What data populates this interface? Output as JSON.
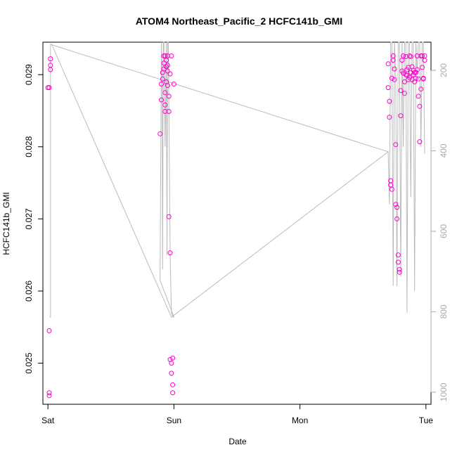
{
  "chart_data": {
    "type": "scatter",
    "title": "ATOM4 Northeast_Pacific_2 HCFC141b_GMI",
    "xlabel": "Date",
    "ylabel": "HCFC141b_GMI",
    "x_ticks": [
      {
        "label": "Sat",
        "value": 0
      },
      {
        "label": "Sun",
        "value": 1
      },
      {
        "label": "Mon",
        "value": 2
      },
      {
        "label": "Tue",
        "value": 3
      }
    ],
    "xlim": [
      -0.04,
      3.04
    ],
    "ylim": [
      0.02443,
      0.02945
    ],
    "y_ticks": [
      0.025,
      0.026,
      0.027,
      0.028,
      0.029
    ],
    "y_right_label": "",
    "y_right_ticks": [
      200,
      400,
      600,
      800,
      1000
    ],
    "y_right_lim": [
      1030,
      130
    ],
    "grid": false,
    "colors": {
      "points": "#ff00cc",
      "line": "#bbbbbb",
      "right_axis": "#aaaaaa"
    },
    "series": [
      {
        "kind": "points",
        "x": [
          0.01,
          0.01,
          0.01,
          0.01,
          0.02,
          0.02,
          0.02,
          0.0,
          0.89,
          0.9,
          0.9,
          0.91,
          0.91,
          0.92,
          0.92,
          0.92,
          0.93,
          0.93,
          0.93,
          0.94,
          0.94,
          0.94,
          0.95,
          0.95,
          0.95,
          0.96,
          0.96,
          0.96,
          0.97,
          0.97,
          0.98,
          0.98,
          0.99,
          0.99,
          0.99,
          1.0,
          0.93,
          0.95,
          0.97,
          0.98,
          2.7,
          2.7,
          2.71,
          2.71,
          2.72,
          2.72,
          2.73,
          2.73,
          2.74,
          2.74,
          2.75,
          2.75,
          2.76,
          2.76,
          2.77,
          2.77,
          2.78,
          2.78,
          2.79,
          2.79,
          2.8,
          2.8,
          2.81,
          2.81,
          2.82,
          2.82,
          2.83,
          2.83,
          2.84,
          2.84,
          2.85,
          2.85,
          2.86,
          2.86,
          2.87,
          2.87,
          2.88,
          2.88,
          2.89,
          2.89,
          2.9,
          2.9,
          2.91,
          2.91,
          2.92,
          2.92,
          2.93,
          2.93,
          2.94,
          2.94,
          2.95,
          2.95,
          2.96,
          2.96,
          2.97,
          2.97,
          2.98,
          2.98,
          2.99,
          2.99
        ],
        "y": [
          0.02545,
          0.02455,
          0.02459,
          0.02882,
          0.02907,
          0.02913,
          0.02922,
          0.02882,
          0.02818,
          0.02865,
          0.02887,
          0.02894,
          0.02903,
          0.02916,
          0.02926,
          0.02908,
          0.02875,
          0.02858,
          0.02849,
          0.0289,
          0.02911,
          0.0292,
          0.02926,
          0.02905,
          0.02885,
          0.0287,
          0.02849,
          0.02703,
          0.02653,
          0.02505,
          0.025,
          0.02486,
          0.02507,
          0.0247,
          0.02459,
          0.02887,
          0.02926,
          0.02913,
          0.02901,
          0.02926,
          0.02915,
          0.02882,
          0.02863,
          0.02841,
          0.02753,
          0.02747,
          0.02741,
          0.02895,
          0.0292,
          0.02926,
          0.02908,
          0.02893,
          0.02803,
          0.0272,
          0.02716,
          0.027,
          0.0265,
          0.0264,
          0.0263,
          0.02626,
          0.02843,
          0.02878,
          0.02905,
          0.0292,
          0.02926,
          0.02902,
          0.0289,
          0.02874,
          0.02925,
          0.029,
          0.02907,
          0.02899,
          0.02893,
          0.0291,
          0.02926,
          0.02896,
          0.02903,
          0.02925,
          0.02911,
          0.02893,
          0.029,
          0.02906,
          0.02903,
          0.0289,
          0.02903,
          0.02895,
          0.02926,
          0.02907,
          0.02894,
          0.0287,
          0.02856,
          0.02807,
          0.0288,
          0.02926,
          0.02926,
          0.0291,
          0.02895,
          0.02894,
          0.0292,
          0.02926
        ]
      },
      {
        "kind": "line",
        "x": [
          0.01,
          0.02,
          0.02,
          0.03,
          0.98,
          0.99,
          1.0,
          0.89,
          0.9,
          0.905,
          0.91,
          0.915,
          0.92,
          0.93,
          0.94,
          0.945,
          0.95,
          0.955,
          0.96,
          0.97,
          0.98,
          0.99,
          2.7,
          0.02,
          2.7,
          2.71,
          2.72,
          2.73,
          2.74,
          2.75,
          2.76,
          2.77,
          2.78,
          2.79,
          2.8,
          2.81,
          2.82,
          2.83,
          2.84,
          2.85,
          2.86,
          2.87,
          2.88,
          2.89,
          2.9,
          2.91,
          2.92,
          2.93,
          2.94,
          2.95,
          2.96,
          2.97,
          2.98,
          2.99
        ],
        "y": [
          0.02564,
          0.02564,
          0.02942,
          0.02942,
          0.02564,
          0.02564,
          0.02564,
          0.02615,
          0.02945,
          0.029,
          0.0263,
          0.02945,
          0.02945,
          0.028,
          0.02945,
          0.0265,
          0.02945,
          0.02945,
          0.0286,
          0.0265,
          0.0257,
          0.02565,
          0.02793,
          0.02942,
          0.02793,
          0.0272,
          0.02945,
          0.02945,
          0.02607,
          0.02945,
          0.029,
          0.02607,
          0.02945,
          0.02945,
          0.0262,
          0.02945,
          0.028,
          0.02945,
          0.02945,
          0.0257,
          0.02945,
          0.02945,
          0.0273,
          0.02945,
          0.02945,
          0.026,
          0.02945,
          0.029,
          0.02945,
          0.02945,
          0.028,
          0.02945,
          0.02945,
          0.0279
        ]
      }
    ]
  }
}
